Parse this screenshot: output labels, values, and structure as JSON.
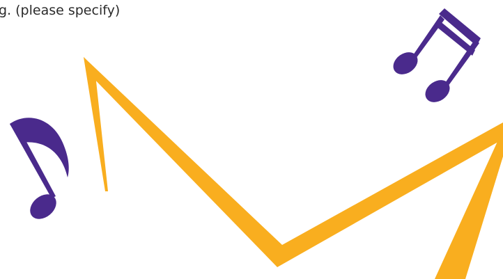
{
  "text": "g. (please specify)"
}
